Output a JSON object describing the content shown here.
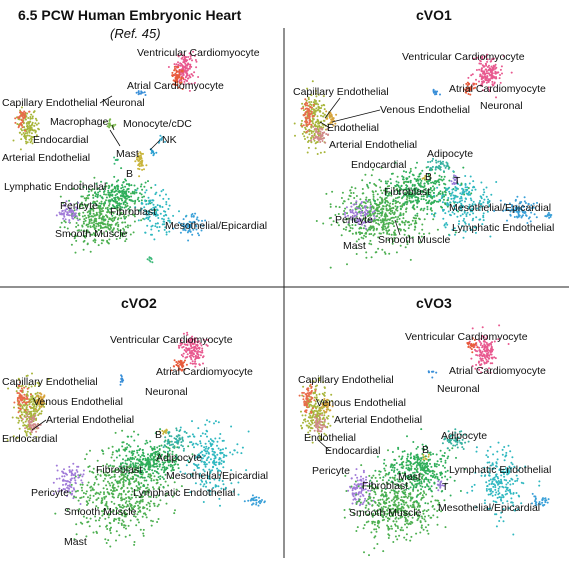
{
  "chart_data": {
    "type": "scatter",
    "colors": {
      "Ventricular Cardiomyocyte": "#e8598f",
      "Atrial Cardiomyocyte": "#e85a3a",
      "Neuronal": "#3a8fd8",
      "Capillary Endothelial": "#a7b53a",
      "Venous Endothelial": "#d7a23a",
      "Endothelial": "#d7a23a",
      "Endocardial": "#e86a4a",
      "Arterial Endothelial": "#d08a8a",
      "Macrophage": "#7ab84a",
      "Monocyte/cDC": "#3aa8c8",
      "Mast": "#3ab878",
      "NK": "#2a9fd0",
      "B": "#c8b43a",
      "T": "#9a7ad8",
      "Lymphatic Endothelial": "#2fb8c0",
      "Pericyte": "#a07ad8",
      "Smooth Muscle": "#4caf50",
      "Fibroblast": "#2fae5a",
      "Mesothelial/Epicardial": "#3aa0d8",
      "Adipocyte": "#35b0a0"
    },
    "panels": [
      {
        "id": "ref",
        "title": "6.5 PCW Human Embryonic Heart",
        "subtitle": "(Ref. 45)",
        "labels": [
          "Ventricular Cardiomyocyte",
          "Atrial Cardiomyocyte",
          "Neuronal",
          "Capillary Endothelial",
          "Macrophage",
          "Monocyte/cDC",
          "Endocardial",
          "NK",
          "Mast",
          "Arterial Endothelial",
          "B",
          "Lymphatic Endothelial",
          "Pericyte",
          "Fibroblast",
          "Smooth Muscle",
          "Mesothelial/Epicardial"
        ]
      },
      {
        "id": "cvo1",
        "title": "cVO1",
        "subtitle": "",
        "labels": [
          "Ventricular Cardiomyocyte",
          "Atrial Cardiomyocyte",
          "Capillary Endothelial",
          "Neuronal",
          "Venous Endothelial",
          "Endothelial",
          "Arterial Endothelial",
          "Endocardial",
          "Adipocyte",
          "B",
          "T",
          "Fibroblast",
          "Mesothelial/Epicardial",
          "Pericyte",
          "Lymphatic Endothelial",
          "Smooth Muscle",
          "Mast"
        ]
      },
      {
        "id": "cvo2",
        "title": "cVO2",
        "subtitle": "",
        "labels": [
          "Ventricular Cardiomyocyte",
          "Atrial Cardiomyocyte",
          "Capillary Endothelial",
          "Neuronal",
          "Venous Endothelial",
          "Arterial Endothelial",
          "Endocardial",
          "B",
          "Adipocyte",
          "Fibroblast",
          "Mesothelial/Epicardial",
          "Pericyte",
          "Lymphatic Endothelial",
          "Smooth Muscle",
          "Mast"
        ]
      },
      {
        "id": "cvo3",
        "title": "cVO3",
        "subtitle": "",
        "labels": [
          "Ventricular Cardiomyocyte",
          "Atrial Cardiomyocyte",
          "Capillary Endothelial",
          "Neuronal",
          "Venous Endothelial",
          "Arterial Endothelial",
          "Endothelial",
          "Adipocyte",
          "Endocardial",
          "B",
          "Lymphatic Endothelial",
          "Pericyte",
          "Mast",
          "Fibroblast",
          "T",
          "Smooth Muscle",
          "Mesothelial/Epicardial"
        ]
      }
    ]
  }
}
